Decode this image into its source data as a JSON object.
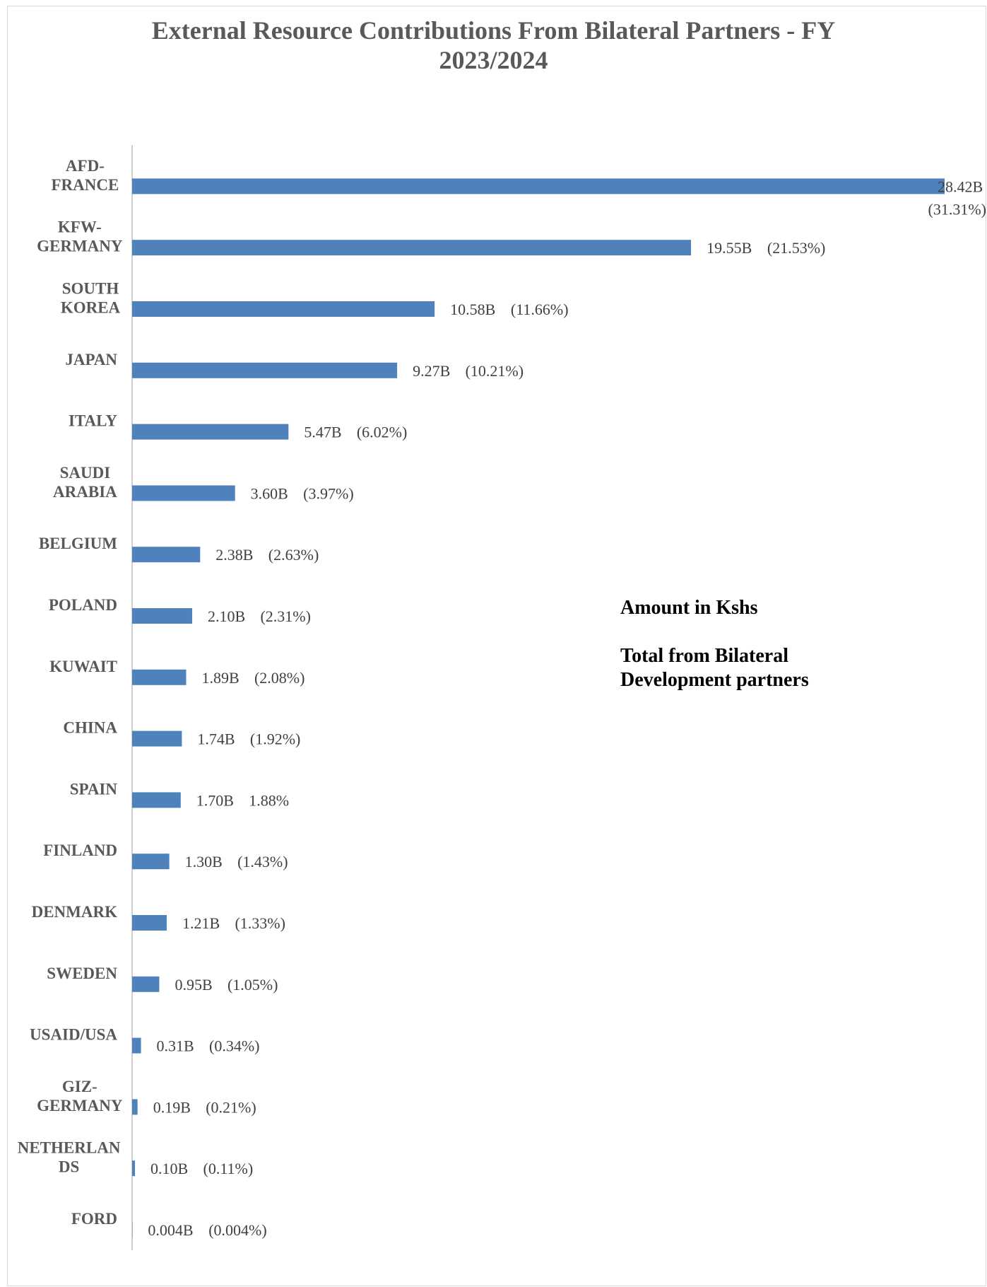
{
  "chart_data": {
    "type": "bar",
    "orientation": "horizontal",
    "title_lines": [
      "External Resource Contributions From Bilateral Partners -  FY",
      "2023/2024"
    ],
    "xlabel": "",
    "ylabel": "",
    "unit": "B",
    "xlim": [
      0,
      28.42
    ],
    "grid": false,
    "legend": "none",
    "bar_color": "#4f81bd",
    "categories": [
      [
        "AFD-",
        "FRANCE"
      ],
      [
        "KFW-",
        "GERMANY"
      ],
      [
        "SOUTH",
        "KOREA"
      ],
      [
        "JAPAN"
      ],
      [
        "ITALY"
      ],
      [
        "SAUDI",
        "ARABIA"
      ],
      [
        "BELGIUM"
      ],
      [
        "POLAND"
      ],
      [
        "KUWAIT"
      ],
      [
        "CHINA"
      ],
      [
        "SPAIN"
      ],
      [
        "FINLAND"
      ],
      [
        "DENMARK"
      ],
      [
        "SWEDEN"
      ],
      [
        "USAID/USA"
      ],
      [
        "GIZ-",
        "GERMANY"
      ],
      [
        "NETHERLAN",
        "DS"
      ],
      [
        "FORD"
      ]
    ],
    "values": [
      28.42,
      19.55,
      10.58,
      9.27,
      5.47,
      3.6,
      2.38,
      2.1,
      1.89,
      1.74,
      1.7,
      1.3,
      1.21,
      0.95,
      0.31,
      0.19,
      0.1,
      0.004
    ],
    "value_labels": [
      "28.42B",
      "19.55B",
      "10.58B",
      "9.27B",
      "5.47B",
      "3.60B",
      "2.38B",
      "2.10B",
      "1.89B",
      "1.74B",
      "1.70B",
      "1.30B",
      "1.21B",
      "0.95B",
      "0.31B",
      "0.19B",
      "0.10B",
      "0.004B"
    ],
    "percent_labels": [
      "(31.31%)",
      "(21.53%)",
      "(11.66%)",
      "(10.21%)",
      "(6.02%)",
      "(3.97%)",
      "(2.63%)",
      "(2.31%)",
      "(2.08%)",
      "(1.92%)",
      "1.88%",
      "(1.43%)",
      "(1.33%)",
      "(1.05%)",
      "(0.34%)",
      "(0.21%)",
      "(0.11%)",
      "(0.004%)"
    ],
    "annotations": [
      "Amount in Kshs",
      "Total from Bilateral Development partners"
    ]
  }
}
